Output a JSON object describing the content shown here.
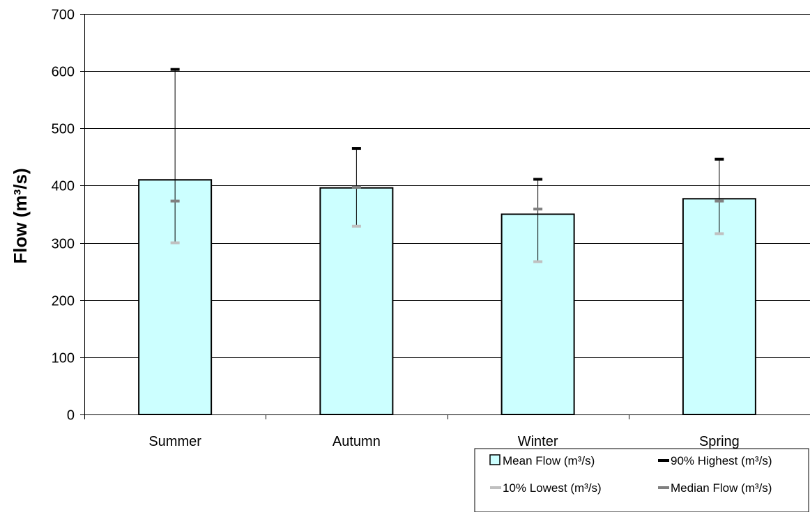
{
  "chart_data": {
    "type": "bar",
    "categories": [
      "Summer",
      "Autumn",
      "Winter",
      "Spring"
    ],
    "ylabel": "Flow (m³/s)",
    "xlabel": "",
    "ylim": [
      0,
      700
    ],
    "yticks": [
      0,
      100,
      200,
      300,
      400,
      500,
      600,
      700
    ],
    "grid": true,
    "legend_position": "bottom-right",
    "series": [
      {
        "name": "Mean Flow (m³/s)",
        "kind": "bar",
        "color": "#ccffff",
        "values": [
          410,
          396,
          350,
          377
        ]
      },
      {
        "name": "90% Highest (m³/s)",
        "kind": "marker",
        "color": "#000000",
        "values": [
          603,
          465,
          411,
          446
        ]
      },
      {
        "name": "10% Lowest (m³/s)",
        "kind": "marker",
        "color": "#c0c0c0",
        "values": [
          300,
          329,
          267,
          316
        ]
      },
      {
        "name": "Median Flow (m³/s)",
        "kind": "marker",
        "color": "#808080",
        "values": [
          373,
          397,
          359,
          373
        ]
      }
    ]
  }
}
